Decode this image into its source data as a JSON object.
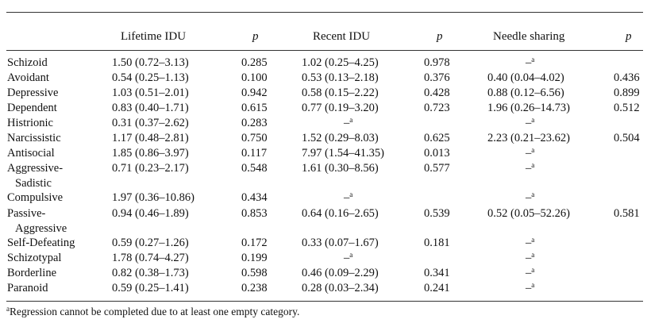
{
  "headers": {
    "lifetime": "Lifetime IDU",
    "p1": "p",
    "recent": "Recent IDU",
    "p2": "p",
    "needle": "Needle sharing",
    "p3": "p"
  },
  "dash": "–",
  "sup_mark": "a",
  "rows": [
    {
      "label": "Schizoid",
      "label2": "",
      "lifetime": "1.50 (0.72–3.13)",
      "p1": "0.285",
      "recent": "1.02 (0.25–4.25)",
      "recent_dash": false,
      "p2": "0.978",
      "needle": "",
      "needle_dash": true,
      "p3": ""
    },
    {
      "label": "Avoidant",
      "label2": "",
      "lifetime": "0.54 (0.25–1.13)",
      "p1": "0.100",
      "recent": "0.53 (0.13–2.18)",
      "recent_dash": false,
      "p2": "0.376",
      "needle": "0.40 (0.04–4.02)",
      "needle_dash": false,
      "p3": "0.436"
    },
    {
      "label": "Depressive",
      "label2": "",
      "lifetime": "1.03 (0.51–2.01)",
      "p1": "0.942",
      "recent": "0.58 (0.15–2.22)",
      "recent_dash": false,
      "p2": "0.428",
      "needle": "0.88 (0.12–6.56)",
      "needle_dash": false,
      "p3": "0.899"
    },
    {
      "label": "Dependent",
      "label2": "",
      "lifetime": "0.83 (0.40–1.71)",
      "p1": "0.615",
      "recent": "0.77 (0.19–3.20)",
      "recent_dash": false,
      "p2": "0.723",
      "needle": "1.96 (0.26–14.73)",
      "needle_dash": false,
      "p3": "0.512"
    },
    {
      "label": "Histrionic",
      "label2": "",
      "lifetime": "0.31 (0.37–2.62)",
      "p1": "0.283",
      "recent": "",
      "recent_dash": true,
      "p2": "",
      "needle": "",
      "needle_dash": true,
      "p3": ""
    },
    {
      "label": "Narcissistic",
      "label2": "",
      "lifetime": "1.17 (0.48–2.81)",
      "p1": "0.750",
      "recent": "1.52 (0.29–8.03)",
      "recent_dash": false,
      "p2": "0.625",
      "needle": "2.23 (0.21–23.62)",
      "needle_dash": false,
      "p3": "0.504"
    },
    {
      "label": "Antisocial",
      "label2": "",
      "lifetime": "1.85 (0.86–3.97)",
      "p1": "0.117",
      "recent": "7.97 (1.54–41.35)",
      "recent_dash": false,
      "p2": "0.013",
      "needle": "",
      "needle_dash": true,
      "p3": ""
    },
    {
      "label": "Aggressive-",
      "label2": "Sadistic",
      "lifetime": "0.71 (0.23–2.17)",
      "p1": "0.548",
      "recent": "1.61 (0.30–8.56)",
      "recent_dash": false,
      "p2": "0.577",
      "needle": "",
      "needle_dash": true,
      "p3": ""
    },
    {
      "label": "Compulsive",
      "label2": "",
      "lifetime": "1.97 (0.36–10.86)",
      "p1": "0.434",
      "recent": "",
      "recent_dash": true,
      "p2": "",
      "needle": "",
      "needle_dash": true,
      "p3": ""
    },
    {
      "label": "Passive-",
      "label2": "Aggressive",
      "lifetime": "0.94 (0.46–1.89)",
      "p1": "0.853",
      "recent": "0.64 (0.16–2.65)",
      "recent_dash": false,
      "p2": "0.539",
      "needle": "0.52 (0.05–52.26)",
      "needle_dash": false,
      "p3": "0.581"
    },
    {
      "label": "Self-Defeating",
      "label2": "",
      "lifetime": "0.59 (0.27–1.26)",
      "p1": "0.172",
      "recent": "0.33 (0.07–1.67)",
      "recent_dash": false,
      "p2": "0.181",
      "needle": "",
      "needle_dash": true,
      "p3": ""
    },
    {
      "label": "Schizotypal",
      "label2": "",
      "lifetime": "1.78 (0.74–4.27)",
      "p1": "0.199",
      "recent": "",
      "recent_dash": true,
      "p2": "",
      "needle": "",
      "needle_dash": true,
      "p3": ""
    },
    {
      "label": "Borderline",
      "label2": "",
      "lifetime": "0.82 (0.38–1.73)",
      "p1": "0.598",
      "recent": "0.46 (0.09–2.29)",
      "recent_dash": false,
      "p2": "0.341",
      "needle": "",
      "needle_dash": true,
      "p3": ""
    },
    {
      "label": "Paranoid",
      "label2": "",
      "lifetime": "0.59 (0.25–1.41)",
      "p1": "0.238",
      "recent": "0.28 (0.03–2.34)",
      "recent_dash": false,
      "p2": "0.241",
      "needle": "",
      "needle_dash": true,
      "p3": ""
    }
  ],
  "footnote": {
    "mark": "a",
    "text": "Regression cannot be completed due to at least one empty category."
  }
}
